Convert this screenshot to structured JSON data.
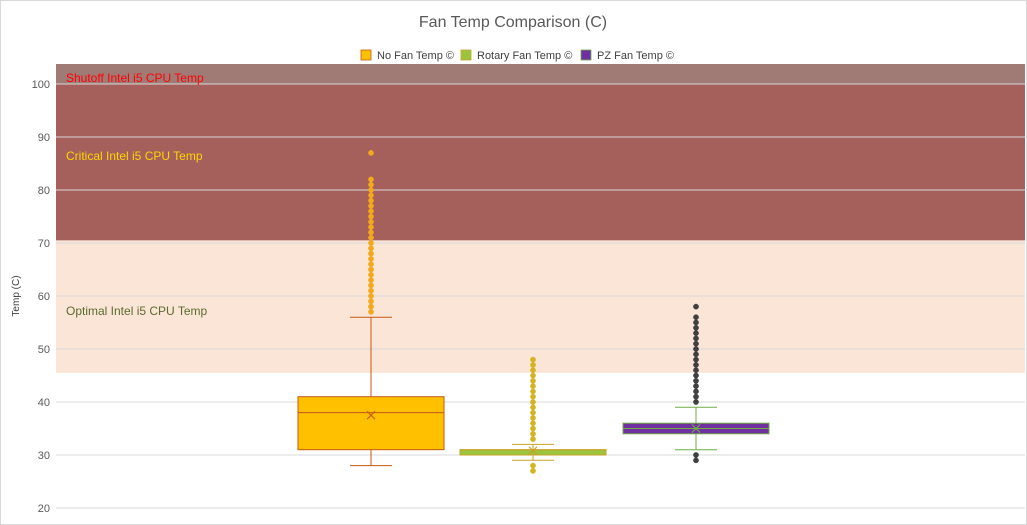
{
  "chart_data": {
    "type": "box",
    "title": "Fan Temp Comparison (C)",
    "xlabel": "",
    "ylabel": "Temp (C)",
    "ylim": [
      20,
      100
    ],
    "yticks": [
      20,
      30,
      40,
      50,
      60,
      70,
      80,
      90,
      100
    ],
    "grid": true,
    "legend_position": "top",
    "bands": [
      {
        "label": "Optimal Intel i5 CPU Temp",
        "from": 45.5,
        "to": 70.5,
        "color": "#fbe5d6",
        "label_color": "#5b6b2e"
      },
      {
        "label": "Critical Intel i5 CPU Temp",
        "from": 70.5,
        "to": 100,
        "color": "#a5605c",
        "label_color": "#ffd400"
      },
      {
        "label": "Shutoff Intel i5 CPU Temp",
        "from": 100,
        "to": 104,
        "color": "#a07b76",
        "label_color": "#ff0000"
      }
    ],
    "series": [
      {
        "name": "No Fan Temp ©",
        "color": "#ffc000",
        "stroke": "#c55a11",
        "outlier_color": "#f4a81c",
        "min": 28,
        "q1": 31,
        "median": 38,
        "q3": 41,
        "max": 56,
        "mean": 37.5,
        "outliers": [
          57,
          58,
          59,
          60,
          61,
          62,
          63,
          64,
          65,
          66,
          67,
          68,
          69,
          70,
          71,
          72,
          73,
          74,
          75,
          76,
          77,
          78,
          79,
          80,
          81,
          82,
          87
        ]
      },
      {
        "name": "Rotary Fan Temp ©",
        "color": "#9bc53d",
        "stroke": "#c9a227",
        "outlier_color": "#d4b521",
        "min": 29,
        "q1": 30,
        "median": 31,
        "q3": 31,
        "max": 32,
        "mean": 30.8,
        "outliers": [
          27,
          28,
          33,
          34,
          35,
          36,
          37,
          38,
          39,
          40,
          41,
          42,
          43,
          44,
          45,
          46,
          47,
          48
        ]
      },
      {
        "name": "PZ Fan Temp ©",
        "color": "#7030a0",
        "stroke": "#70ad47",
        "outlier_color": "#404040",
        "min": 31,
        "q1": 34,
        "median": 35,
        "q3": 36,
        "max": 39,
        "mean": 35,
        "outliers": [
          29,
          30,
          40,
          41,
          42,
          43,
          44,
          45,
          46,
          47,
          48,
          49,
          50,
          51,
          52,
          53,
          54,
          55,
          56,
          58
        ]
      }
    ]
  }
}
